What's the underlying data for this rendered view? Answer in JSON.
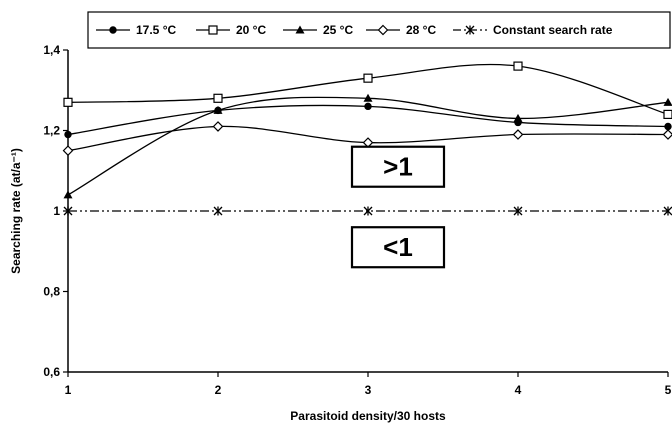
{
  "chart_data": {
    "type": "line",
    "x": [
      1,
      2,
      3,
      4,
      5
    ],
    "xticks": [
      "1",
      "2",
      "3",
      "4",
      "5"
    ],
    "xlim": [
      1,
      5
    ],
    "yticks": [
      "0,6",
      "0,8",
      "1",
      "1,2",
      "1,4"
    ],
    "ytick_values": [
      0.6,
      0.8,
      1.0,
      1.2,
      1.4
    ],
    "ylim": [
      0.6,
      1.4
    ],
    "xlabel": "Parasitoid density/30 hosts",
    "ylabel": "Searching rate (at/a⁻¹)",
    "legend_position": "top",
    "grid": false,
    "series": [
      {
        "name": "17.5 °C",
        "marker": "filled-circle",
        "smooth": true,
        "values": [
          1.19,
          1.25,
          1.26,
          1.22,
          1.21
        ]
      },
      {
        "name": "20 °C",
        "marker": "open-square",
        "smooth": true,
        "values": [
          1.27,
          1.28,
          1.33,
          1.36,
          1.24
        ]
      },
      {
        "name": "25 °C",
        "marker": "filled-triangle",
        "smooth": true,
        "values": [
          1.04,
          1.25,
          1.28,
          1.23,
          1.27
        ]
      },
      {
        "name": "28 °C",
        "marker": "open-diamond",
        "smooth": true,
        "values": [
          1.15,
          1.21,
          1.17,
          1.19,
          1.19
        ]
      },
      {
        "name": "Constant search rate",
        "marker": "star",
        "smooth": false,
        "dashed": true,
        "values": [
          1.0,
          1.0,
          1.0,
          1.0,
          1.0
        ]
      }
    ],
    "annotations": [
      {
        "text": ">1",
        "x": 3.2,
        "y": 1.11
      },
      {
        "text": "<1",
        "x": 3.2,
        "y": 0.91
      }
    ]
  }
}
